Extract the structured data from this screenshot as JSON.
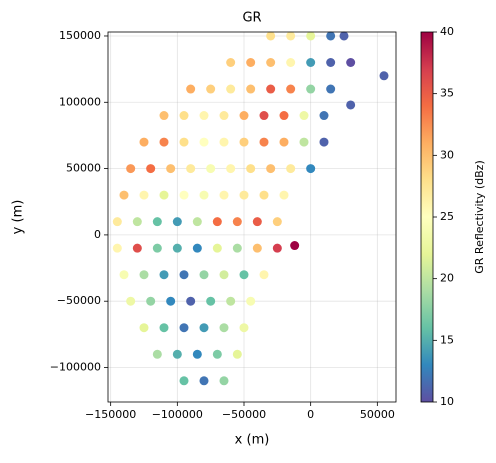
{
  "chart_data": {
    "type": "scatter",
    "title": "GR",
    "x_label": "x (m)",
    "y_label": "y (m)",
    "colorbar_label": "GR Reflectivity (dBz)",
    "colormap": "Spectral_r",
    "grid": true,
    "xlim": [
      -152000,
      64000
    ],
    "ylim": [
      -126000,
      153000
    ],
    "xticks": [
      {
        "value": -150000,
        "label": "−150000"
      },
      {
        "value": -100000,
        "label": "−100000"
      },
      {
        "value": -50000,
        "label": "−50000"
      },
      0,
      50000
    ],
    "yticks": [
      {
        "value": -100000,
        "label": "−100000"
      },
      {
        "value": -50000,
        "label": "−50000"
      },
      0,
      50000,
      100000,
      150000
    ],
    "clim": [
      10,
      40
    ],
    "cticks": [
      10,
      15,
      20,
      25,
      30,
      35,
      40
    ],
    "series": [
      {
        "x": [
          -30000,
          -15000,
          0,
          15000,
          25000,
          -60000,
          -45000,
          -30000,
          -15000,
          0,
          15000,
          30000,
          -90000,
          -75000,
          -60000,
          -45000,
          -30000,
          -15000,
          0,
          15000,
          55000,
          -110000,
          -95000,
          -80000,
          -65000,
          -50000,
          -35000,
          -20000,
          -5000,
          10000,
          30000,
          -125000,
          -110000,
          -95000,
          -80000,
          -65000,
          -50000,
          -35000,
          -20000,
          -5000,
          10000,
          -135000,
          -120000,
          -105000,
          -90000,
          -75000,
          -60000,
          -45000,
          -30000,
          -15000,
          0,
          -140000,
          -125000,
          -110000,
          -95000,
          -80000,
          -65000,
          -50000,
          -35000,
          -20000,
          -145000,
          -130000,
          -115000,
          -100000,
          -85000,
          -70000,
          -55000,
          -40000,
          -25000,
          -145000,
          -130000,
          -115000,
          -100000,
          -85000,
          -70000,
          -55000,
          -40000,
          -25000,
          -12000,
          -140000,
          -125000,
          -110000,
          -95000,
          -80000,
          -65000,
          -50000,
          -35000,
          -135000,
          -120000,
          -105000,
          -90000,
          -75000,
          -60000,
          -45000,
          -125000,
          -110000,
          -95000,
          -80000,
          -65000,
          -50000,
          -115000,
          -100000,
          -85000,
          -70000,
          -55000,
          -95000,
          -80000,
          -65000
        ],
        "values": [
          150000,
          150000,
          150000,
          150000,
          150000,
          130000,
          130000,
          130000,
          130000,
          130000,
          130000,
          130000,
          110000,
          110000,
          110000,
          110000,
          110000,
          110000,
          110000,
          110000,
          120000,
          90000,
          90000,
          90000,
          90000,
          90000,
          90000,
          90000,
          90000,
          90000,
          98000,
          70000,
          70000,
          70000,
          70000,
          70000,
          70000,
          70000,
          70000,
          70000,
          70000,
          50000,
          50000,
          50000,
          50000,
          50000,
          50000,
          50000,
          50000,
          50000,
          50000,
          30000,
          30000,
          30000,
          30000,
          30000,
          30000,
          30000,
          30000,
          30000,
          10000,
          10000,
          10000,
          10000,
          10000,
          10000,
          10000,
          10000,
          10000,
          -10000,
          -10000,
          -10000,
          -10000,
          -10000,
          -10000,
          -10000,
          -10000,
          -10000,
          -8000,
          -30000,
          -30000,
          -30000,
          -30000,
          -30000,
          -30000,
          -30000,
          -30000,
          -50000,
          -50000,
          -50000,
          -50000,
          -50000,
          -50000,
          -50000,
          -70000,
          -70000,
          -70000,
          -70000,
          -70000,
          -70000,
          -90000,
          -90000,
          -90000,
          -90000,
          -90000,
          -110000,
          -110000,
          -110000
        ],
        "c": [
          28,
          27,
          22,
          12,
          11,
          29,
          31,
          30,
          26,
          14,
          11,
          10,
          31,
          29,
          27,
          30,
          35,
          33,
          18,
          12,
          11,
          30,
          28,
          26,
          27,
          31,
          36,
          34,
          23,
          12,
          11,
          31,
          33,
          28,
          25,
          26,
          29,
          33,
          31,
          20,
          11,
          32,
          34,
          30,
          27,
          24,
          26,
          28,
          30,
          27,
          13,
          30,
          26,
          22,
          25,
          24,
          26,
          27,
          28,
          26,
          27,
          20,
          16,
          14,
          20,
          34,
          33,
          35,
          29,
          26,
          36,
          17,
          15,
          13,
          22,
          19,
          30,
          37,
          40,
          24,
          19,
          14,
          12,
          18,
          21,
          16,
          26,
          23,
          18,
          13,
          11,
          16,
          20,
          24,
          22,
          16,
          12,
          14,
          19,
          23,
          19,
          15,
          13,
          17,
          22,
          16,
          12,
          18
        ]
      }
    ]
  }
}
